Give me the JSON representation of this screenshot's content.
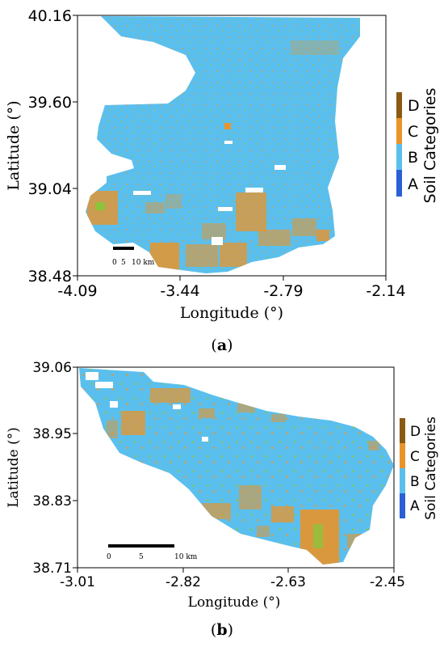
{
  "panels": [
    {
      "caption_open": "(",
      "caption_letter": "a",
      "caption_close": ")",
      "xlabel": "Longitude (°)",
      "ylabel": "Latitude (°)",
      "xticks": [
        "-4.09",
        "-3.44",
        "-2.79",
        "-2.14"
      ],
      "yticks": [
        "40.16",
        "39.60",
        "39.04",
        "38.48"
      ],
      "colorbar_label": "Soil Categories",
      "categories": [
        "A",
        "B",
        "C",
        "D"
      ],
      "scalebar": [
        "0",
        "5",
        "10 km"
      ]
    },
    {
      "caption_open": "(",
      "caption_letter": "b",
      "caption_close": ")",
      "xlabel": "Longitude (°)",
      "ylabel": "Latitude (°)",
      "xticks": [
        "-3.01",
        "-2.82",
        "-2.63",
        "-2.45"
      ],
      "yticks": [
        "39.06",
        "38.95",
        "38.83",
        "38.71"
      ],
      "colorbar_label": "Soil Categories",
      "categories": [
        "A",
        "B",
        "C",
        "D"
      ],
      "scalebar": [
        "0",
        "5",
        "10 km"
      ]
    }
  ],
  "colors": {
    "A": "#2a5fd6",
    "B": "#5bbfee",
    "C": "#e8942a",
    "D": "#8a5a14",
    "edge": "#8cc43c"
  }
}
